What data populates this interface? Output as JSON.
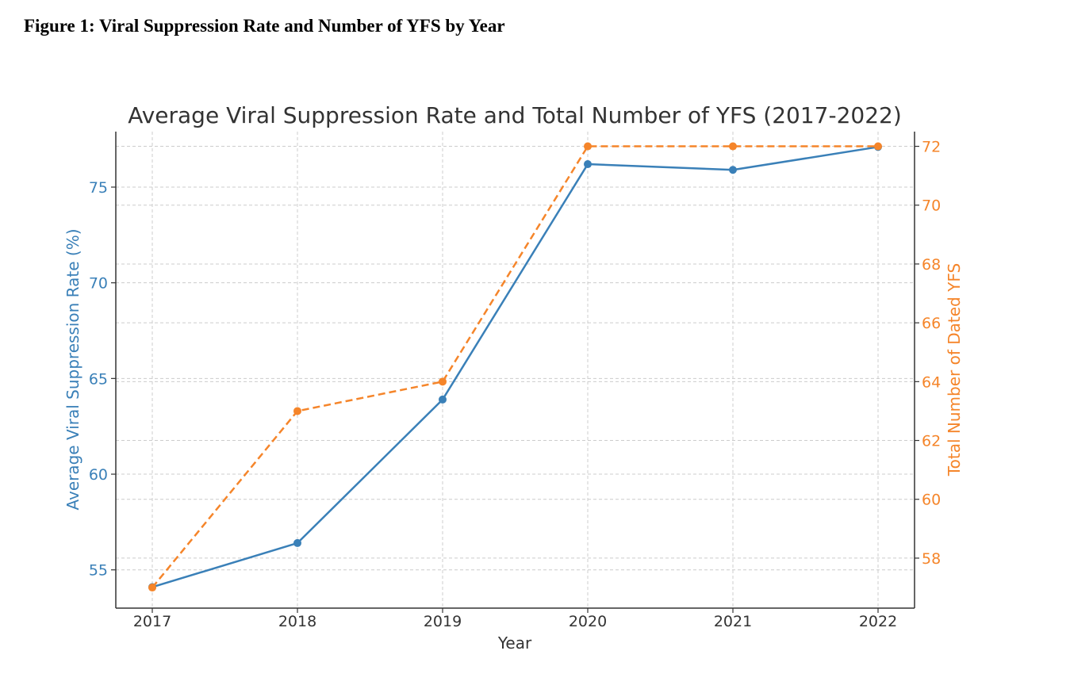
{
  "figure": {
    "caption": "Figure 1: Viral Suppression Rate and Number of YFS by Year"
  },
  "colors": {
    "left_series": "#3a80b8",
    "right_series": "#f5852a",
    "axis": "#333333",
    "grid": "#cccccc",
    "title": "#333333"
  },
  "chart_data": {
    "type": "line",
    "title": "Average Viral Suppression Rate and Total Number of YFS (2017-2022)",
    "xlabel": "Year",
    "ylabel_left": "Average Viral Suppression Rate (%)",
    "ylabel_right": "Total Number of Dated YFS",
    "x": [
      "2017",
      "2018",
      "2019",
      "2020",
      "2021",
      "2022"
    ],
    "ylim_left": [
      53.0,
      77.9
    ],
    "ylim_right": [
      56.3,
      72.5
    ],
    "yticks_left": [
      55,
      60,
      65,
      70,
      75
    ],
    "yticks_right": [
      58,
      60,
      62,
      64,
      66,
      68,
      70,
      72
    ],
    "grid": true,
    "series": [
      {
        "axis": "left",
        "style": "solid",
        "values": [
          54.1,
          56.4,
          63.9,
          76.2,
          75.9,
          77.1
        ]
      },
      {
        "axis": "right",
        "style": "dashed",
        "values": [
          57,
          63,
          64,
          72,
          72,
          72
        ]
      }
    ]
  }
}
